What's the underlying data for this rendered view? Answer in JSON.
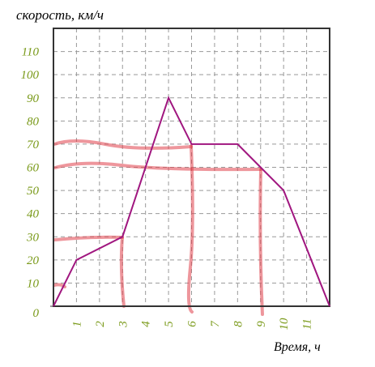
{
  "chart_data": {
    "type": "line",
    "title": "скорость, км/ч",
    "x_label": "Время, ч",
    "x": [
      0,
      1,
      3,
      5,
      6,
      8,
      9,
      10,
      12
    ],
    "values": [
      0,
      20,
      30,
      90,
      70,
      70,
      60,
      50,
      0
    ],
    "color": "#a0167f",
    "xlim": [
      0,
      12
    ],
    "ylim": [
      0,
      120
    ],
    "xticks": [
      1,
      2,
      3,
      4,
      5,
      6,
      7,
      8,
      9,
      10,
      11
    ],
    "yticks": [
      0,
      10,
      20,
      30,
      40,
      50,
      60,
      70,
      80,
      90,
      100,
      110
    ],
    "grid": true
  }
}
